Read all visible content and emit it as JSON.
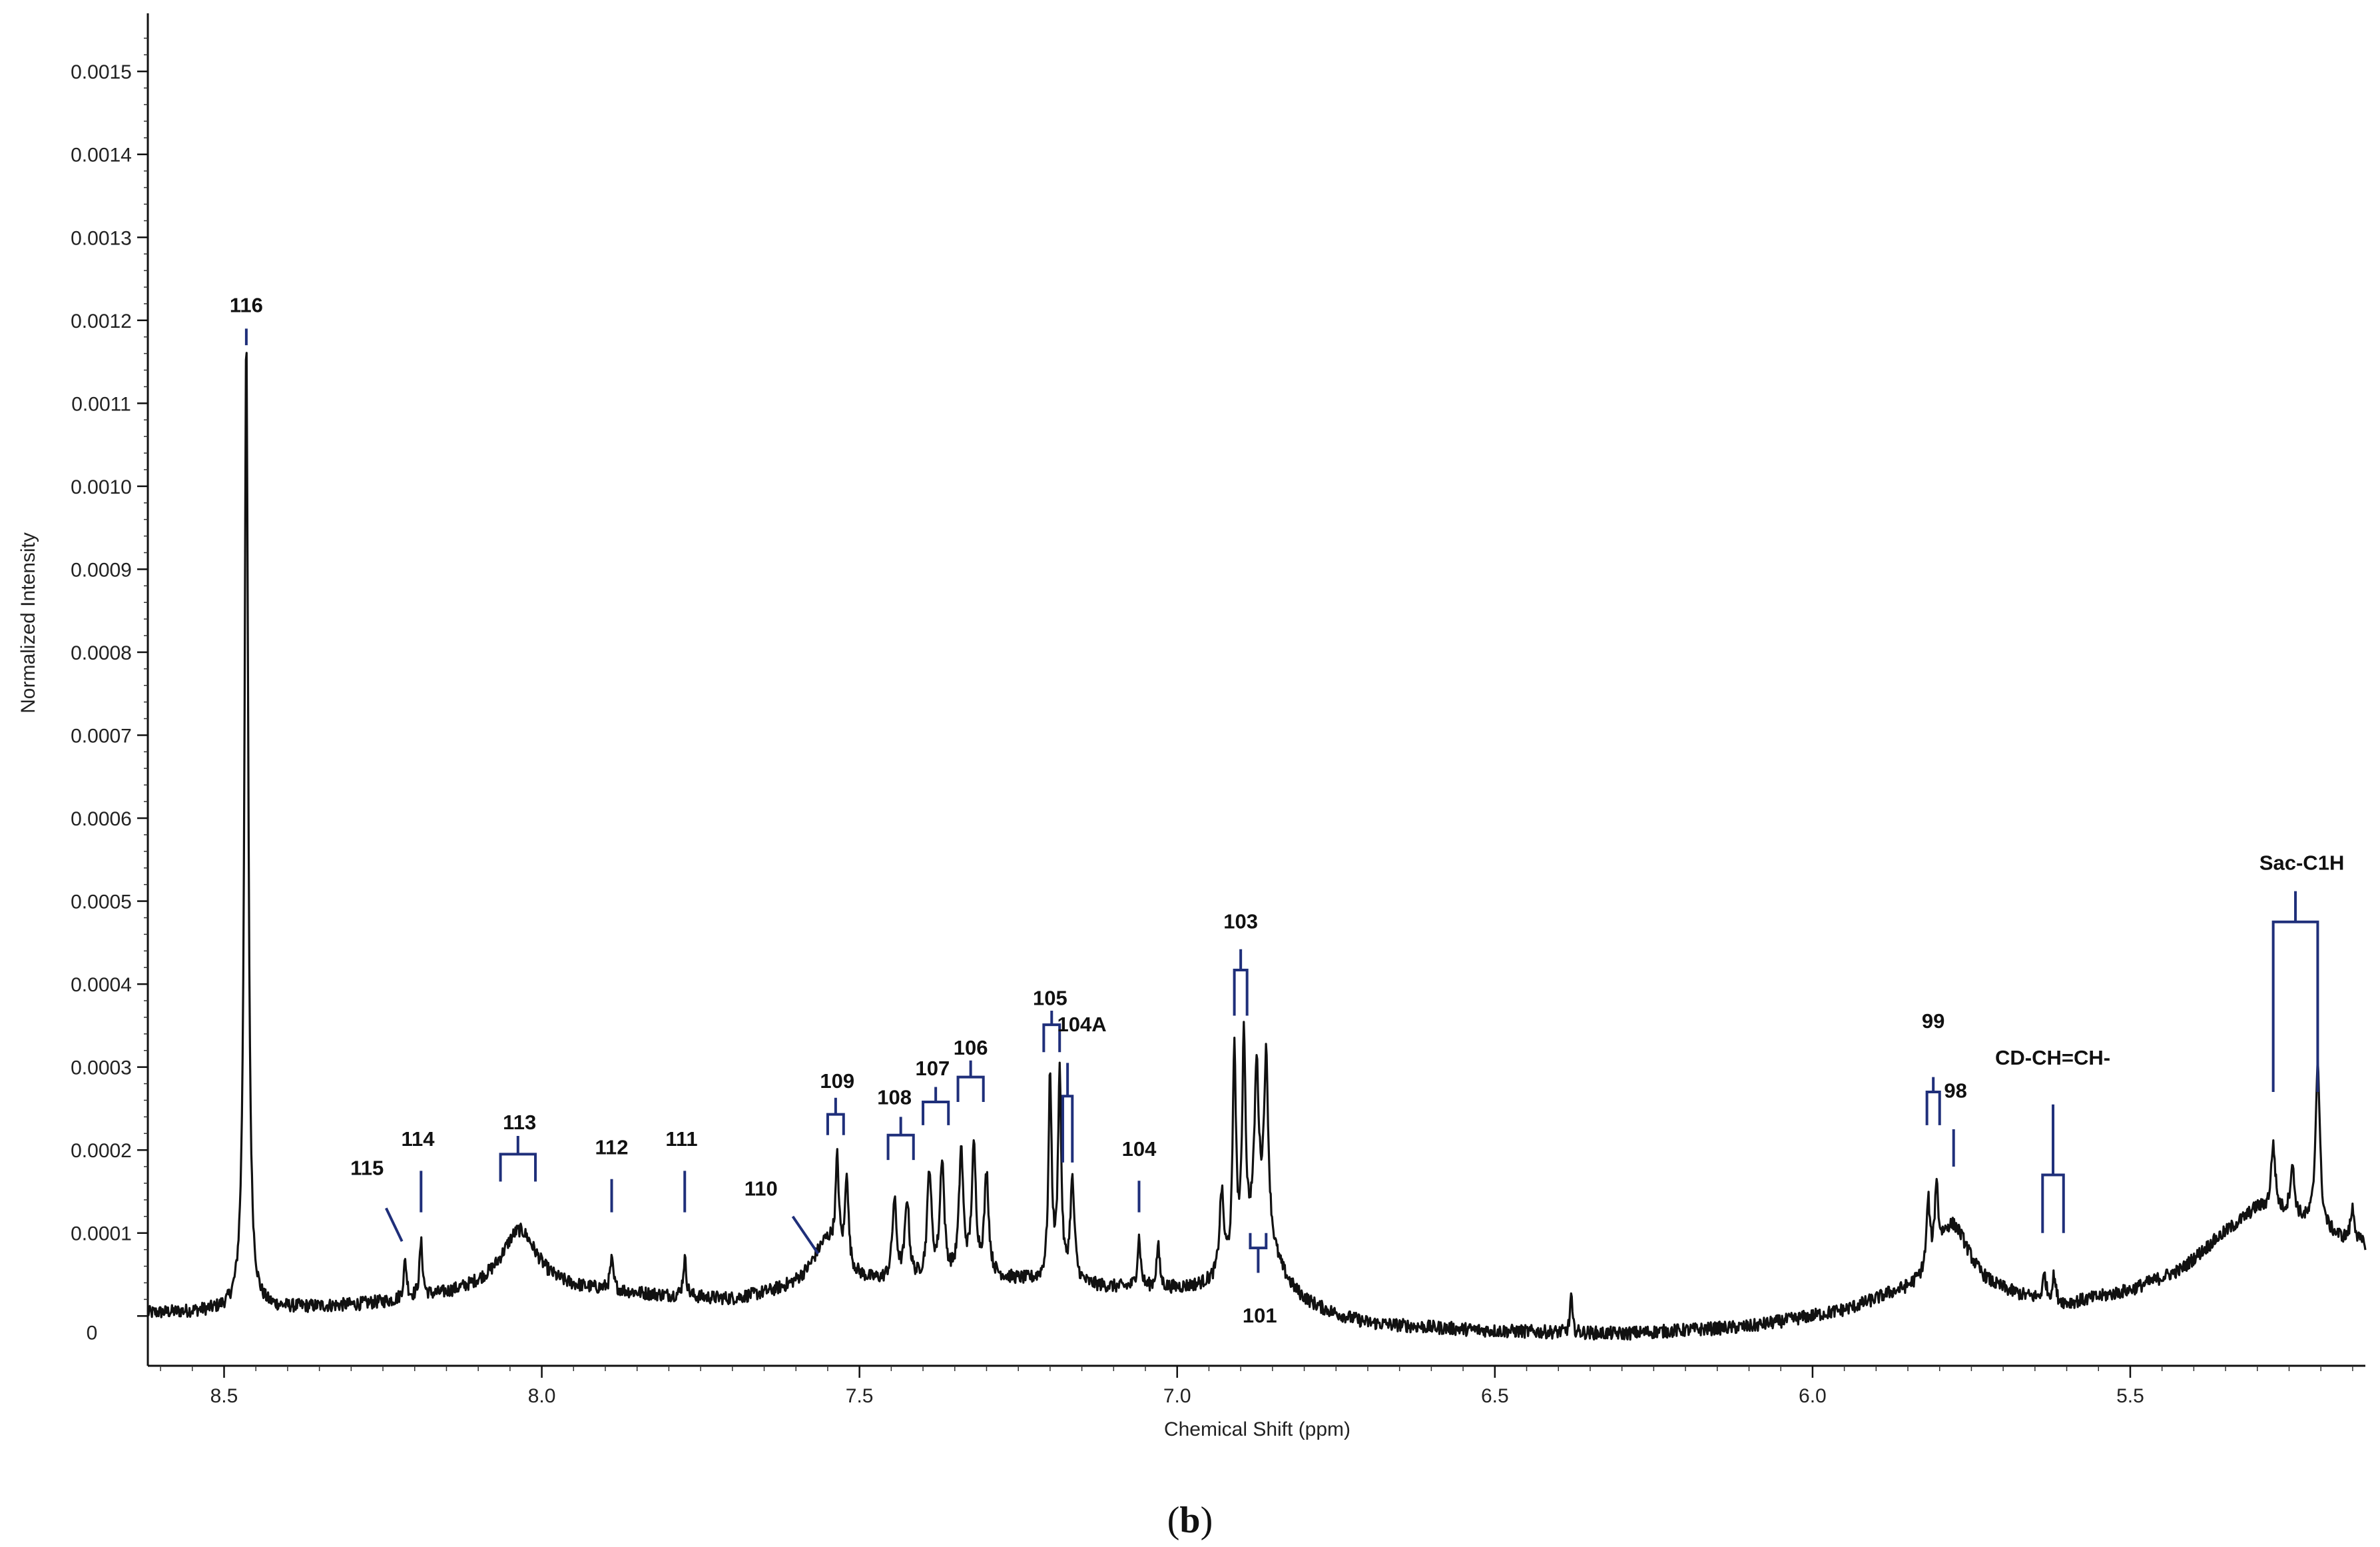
{
  "chart_data": {
    "type": "line",
    "xlabel": "Chemical Shift (ppm)",
    "ylabel": "Normalized Intensity",
    "xlim": [
      8.62,
      5.13
    ],
    "ylim": [
      -6e-05,
      0.00157
    ],
    "x_reversed": true,
    "x_ticks": [
      {
        "value": 8.5,
        "label": "8.5"
      },
      {
        "value": 8.0,
        "label": "8.0"
      },
      {
        "value": 7.5,
        "label": "7.5"
      },
      {
        "value": 7.0,
        "label": "7.0"
      },
      {
        "value": 6.5,
        "label": "6.5"
      },
      {
        "value": 6.0,
        "label": "6.0"
      },
      {
        "value": 5.5,
        "label": "5.5"
      }
    ],
    "y_ticks": [
      {
        "value": 0.0015,
        "label": "0.0015"
      },
      {
        "value": 0.0014,
        "label": "0.0014"
      },
      {
        "value": 0.0013,
        "label": "0.0013"
      },
      {
        "value": 0.0012,
        "label": "0.0012"
      },
      {
        "value": 0.0011,
        "label": "0.0011"
      },
      {
        "value": 0.001,
        "label": "0.0010"
      },
      {
        "value": 0.0009,
        "label": "0.0009"
      },
      {
        "value": 0.0008,
        "label": "0.0008"
      },
      {
        "value": 0.0007,
        "label": "0.0007"
      },
      {
        "value": 0.0006,
        "label": "0.0006"
      },
      {
        "value": 0.0005,
        "label": "0.0005"
      },
      {
        "value": 0.0004,
        "label": "0.0004"
      },
      {
        "value": 0.0003,
        "label": "0.0003"
      },
      {
        "value": 0.0002,
        "label": "0.0002"
      },
      {
        "value": 0.0001,
        "label": "0.0001"
      },
      {
        "value": 0,
        "label": "0"
      }
    ],
    "baseline": [
      [
        8.62,
        3e-06
      ],
      [
        8.5,
        6e-06
      ],
      [
        8.3,
        1.2e-05
      ],
      [
        8.2,
        1.8e-05
      ],
      [
        8.1,
        2.8e-05
      ],
      [
        7.9,
        2.8e-05
      ],
      [
        7.8,
        2.2e-05
      ],
      [
        7.7,
        1.8e-05
      ],
      [
        7.62,
        2.6e-05
      ],
      [
        7.3,
        4.5e-05
      ],
      [
        7.1,
        3.2e-05
      ],
      [
        6.95,
        2.5e-05
      ],
      [
        6.82,
        6e-06
      ],
      [
        6.7,
        -1.2e-05
      ],
      [
        6.5,
        -1.9e-05
      ],
      [
        6.3,
        -2.2e-05
      ],
      [
        6.1,
        -1.4e-05
      ],
      [
        5.95,
        4e-06
      ],
      [
        5.88,
        1.8e-05
      ],
      [
        5.7,
        2e-05
      ],
      [
        5.6,
        1.2e-05
      ],
      [
        5.5,
        3e-05
      ],
      [
        5.42,
        5.5e-05
      ],
      [
        5.36,
        9.5e-05
      ],
      [
        5.3,
        0.00013
      ],
      [
        5.25,
        0.00012
      ],
      [
        5.2,
        0.000105
      ],
      [
        5.16,
        9e-05
      ],
      [
        5.13,
        8.5e-05
      ]
    ],
    "peaks": [
      {
        "x": 8.465,
        "y": 0.00117,
        "w": 0.0035
      },
      {
        "x": 8.215,
        "y": 4.5e-05,
        "w": 0.003
      },
      {
        "x": 8.19,
        "y": 6.5e-05,
        "w": 0.003
      },
      {
        "x": 8.035,
        "y": 7.5e-05,
        "w": 0.035
      },
      {
        "x": 7.89,
        "y": 3.5e-05,
        "w": 0.003
      },
      {
        "x": 7.775,
        "y": 4.5e-05,
        "w": 0.003
      },
      {
        "x": 7.55,
        "y": 6e-05,
        "w": 0.03
      },
      {
        "x": 7.535,
        "y": 0.00011,
        "w": 0.003
      },
      {
        "x": 7.52,
        "y": 0.00011,
        "w": 0.003
      },
      {
        "x": 7.445,
        "y": 9.5e-05,
        "w": 0.004
      },
      {
        "x": 7.425,
        "y": 9.5e-05,
        "w": 0.004
      },
      {
        "x": 7.39,
        "y": 0.00013,
        "w": 0.004
      },
      {
        "x": 7.37,
        "y": 0.00014,
        "w": 0.004
      },
      {
        "x": 7.34,
        "y": 0.00015,
        "w": 0.004
      },
      {
        "x": 7.32,
        "y": 0.00015,
        "w": 0.004
      },
      {
        "x": 7.3,
        "y": 0.00012,
        "w": 0.004
      },
      {
        "x": 7.2,
        "y": 0.000245,
        "w": 0.003
      },
      {
        "x": 7.185,
        "y": 0.00025,
        "w": 0.003
      },
      {
        "x": 7.165,
        "y": 0.00012,
        "w": 0.004
      },
      {
        "x": 7.06,
        "y": 6e-05,
        "w": 0.003
      },
      {
        "x": 7.03,
        "y": 5e-05,
        "w": 0.003
      },
      {
        "x": 6.93,
        "y": 0.0001,
        "w": 0.004
      },
      {
        "x": 6.91,
        "y": 0.00026,
        "w": 0.003
      },
      {
        "x": 6.895,
        "y": 0.00026,
        "w": 0.003
      },
      {
        "x": 6.875,
        "y": 0.00019,
        "w": 0.004
      },
      {
        "x": 6.86,
        "y": 0.00021,
        "w": 0.004
      },
      {
        "x": 6.87,
        "y": 9e-05,
        "w": 0.035
      },
      {
        "x": 6.38,
        "y": 4.5e-05,
        "w": 0.002
      },
      {
        "x": 5.818,
        "y": 8e-05,
        "w": 0.003
      },
      {
        "x": 5.805,
        "y": 8.5e-05,
        "w": 0.003
      },
      {
        "x": 5.78,
        "y": 9e-05,
        "w": 0.035
      },
      {
        "x": 5.635,
        "y": 3e-05,
        "w": 0.003
      },
      {
        "x": 5.62,
        "y": 3e-05,
        "w": 0.003
      },
      {
        "x": 5.275,
        "y": 8e-05,
        "w": 0.004
      },
      {
        "x": 5.245,
        "y": 6e-05,
        "w": 0.004
      },
      {
        "x": 5.205,
        "y": 0.0002,
        "w": 0.004
      },
      {
        "x": 5.15,
        "y": 4e-05,
        "w": 0.004
      }
    ],
    "noise_amplitude": 8e-06,
    "annotations": [
      {
        "label": "116",
        "text_x": 8.465,
        "text_y": 0.00121,
        "mark": "line",
        "mx": 8.465,
        "my1": 0.00119,
        "my2": 0.00117
      },
      {
        "label": "115",
        "text_x": 8.275,
        "text_y": 0.00017,
        "mark": "slant",
        "mx": 8.245,
        "my1": 0.00013,
        "mx2": 8.22,
        "my2": 9e-05
      },
      {
        "label": "114",
        "text_x": 8.195,
        "text_y": 0.000205,
        "mark": "line",
        "mx": 8.19,
        "my1": 0.000175,
        "my2": 0.000125
      },
      {
        "label": "113",
        "text_x": 8.035,
        "text_y": 0.000225,
        "mark": "bracket",
        "x1": 8.065,
        "x2": 8.01,
        "by": 0.000162,
        "bh": 3.3e-05,
        "stem": 2.2e-05
      },
      {
        "label": "112",
        "text_x": 7.89,
        "text_y": 0.000195,
        "mark": "line",
        "mx": 7.89,
        "my1": 0.000165,
        "my2": 0.000125
      },
      {
        "label": "111",
        "text_x": 7.78,
        "text_y": 0.000205,
        "mark": "line",
        "mx": 7.775,
        "my1": 0.000175,
        "my2": 0.000125
      },
      {
        "label": "110",
        "text_x": 7.655,
        "text_y": 0.000145,
        "mark": "slant",
        "mx": 7.605,
        "my1": 0.00012,
        "mx2": 7.565,
        "my2": 7.5e-05
      },
      {
        "label": "109",
        "text_x": 7.535,
        "text_y": 0.000275,
        "mark": "bracket",
        "x1": 7.55,
        "x2": 7.525,
        "by": 0.000218,
        "bh": 2.5e-05,
        "stem": 2e-05
      },
      {
        "label": "108",
        "text_x": 7.445,
        "text_y": 0.000255,
        "mark": "bracket",
        "x1": 7.455,
        "x2": 7.415,
        "by": 0.000188,
        "bh": 3e-05,
        "stem": 2.2e-05
      },
      {
        "label": "107",
        "text_x": 7.385,
        "text_y": 0.00029,
        "mark": "bracket",
        "x1": 7.4,
        "x2": 7.36,
        "by": 0.00023,
        "bh": 2.8e-05,
        "stem": 1.8e-05
      },
      {
        "label": "106",
        "text_x": 7.325,
        "text_y": 0.000315,
        "mark": "bracket",
        "x1": 7.345,
        "x2": 7.305,
        "by": 0.000258,
        "bh": 3e-05,
        "stem": 2e-05
      },
      {
        "label": "105",
        "text_x": 7.2,
        "text_y": 0.000375,
        "mark": "bracket",
        "x1": 7.21,
        "x2": 7.185,
        "by": 0.000318,
        "bh": 3.3e-05,
        "stem": 1.7e-05
      },
      {
        "label": "104A",
        "text_x": 7.15,
        "text_y": 0.000343,
        "mark": "bracket_v",
        "x1": 7.18,
        "x2": 7.165,
        "by": 0.000185,
        "bh": 8e-05,
        "stem": 4e-05
      },
      {
        "label": "104",
        "text_x": 7.06,
        "text_y": 0.000193,
        "mark": "line",
        "mx": 7.06,
        "my1": 0.000163,
        "my2": 0.000125
      },
      {
        "label": "103",
        "text_x": 6.9,
        "text_y": 0.000467,
        "mark": "bracket",
        "x1": 6.91,
        "x2": 6.89,
        "by": 0.000362,
        "bh": 5.5e-05,
        "stem": 2.5e-05
      },
      {
        "label": "101",
        "text_x": 6.87,
        "text_y": -8e-06,
        "mark": "bracket_down",
        "x1": 6.885,
        "x2": 6.86,
        "by": 0.0001,
        "bh": 1.8e-05,
        "stem": 3e-05
      },
      {
        "label": "99",
        "text_x": 5.81,
        "text_y": 0.000347,
        "mark": "bracket",
        "x1": 5.82,
        "x2": 5.8,
        "by": 0.00023,
        "bh": 4e-05,
        "stem": 1.8e-05
      },
      {
        "label": "98",
        "text_x": 5.775,
        "text_y": 0.000263,
        "mark": "line",
        "mx": 5.778,
        "my1": 0.000225,
        "my2": 0.00018
      },
      {
        "label": "CD-CH=CH-",
        "text_x": 5.622,
        "text_y": 0.000303,
        "mark": "bracket",
        "x1": 5.638,
        "x2": 5.605,
        "by": 0.0001,
        "bh": 7e-05,
        "stem": 8.5e-05
      },
      {
        "label": "Sac-C1H",
        "text_x": 5.23,
        "text_y": 0.000538,
        "mark": "bracket",
        "x1": 5.275,
        "x2": 5.205,
        "by": 0.00027,
        "bh": 0.000205,
        "stem": 3.7e-05
      }
    ]
  },
  "caption": {
    "open": "(",
    "letter": "b",
    "close": ")"
  }
}
